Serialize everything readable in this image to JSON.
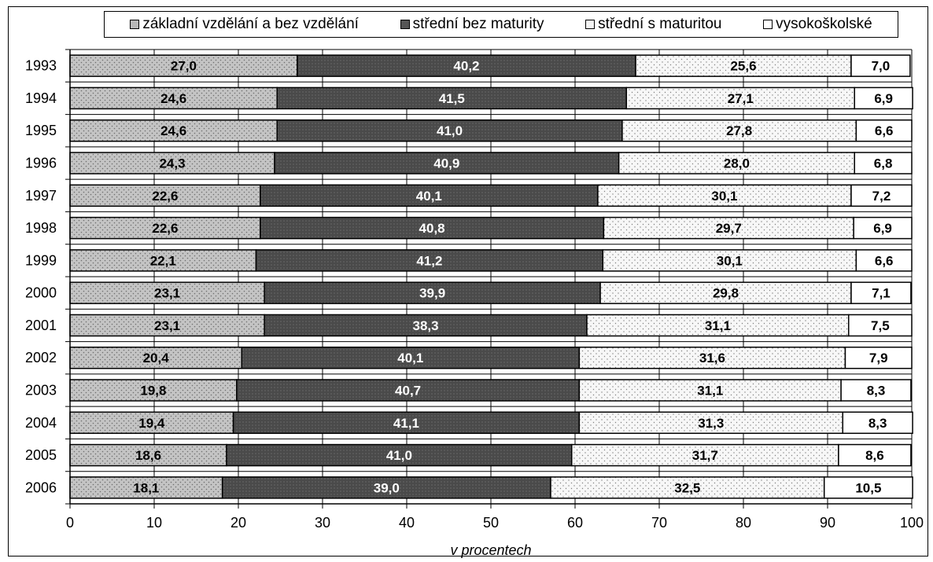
{
  "chart_data": {
    "type": "bar",
    "orientation": "horizontal",
    "stacked": true,
    "categories": [
      "1993",
      "1994",
      "1995",
      "1996",
      "1997",
      "1998",
      "1999",
      "2000",
      "2001",
      "2002",
      "2003",
      "2004",
      "2005",
      "2006"
    ],
    "series": [
      {
        "name": "základní vzdělání a bez vzdělání",
        "color": "#b8b8b8",
        "values": [
          27.0,
          24.6,
          24.6,
          24.3,
          22.6,
          22.6,
          22.1,
          23.1,
          23.1,
          20.4,
          19.8,
          19.4,
          18.6,
          18.1
        ],
        "labels": [
          "27,0",
          "24,6",
          "24,6",
          "24,3",
          "22,6",
          "22,6",
          "22,1",
          "23,1",
          "23,1",
          "20,4",
          "19,8",
          "19,4",
          "18,6",
          "18,1"
        ]
      },
      {
        "name": "střední bez maturity",
        "color": "#555555",
        "values": [
          40.2,
          41.5,
          41.0,
          40.9,
          40.1,
          40.8,
          41.2,
          39.9,
          38.3,
          40.1,
          40.7,
          41.1,
          41.0,
          39.0
        ],
        "labels": [
          "40,2",
          "41,5",
          "41,0",
          "40,9",
          "40,1",
          "40,8",
          "41,2",
          "39,9",
          "38,3",
          "40,1",
          "40,7",
          "41,1",
          "41,0",
          "39,0"
        ]
      },
      {
        "name": "střední s maturitou",
        "color": "#f4f4f4",
        "values": [
          25.6,
          27.1,
          27.8,
          28.0,
          30.1,
          29.7,
          30.1,
          29.8,
          31.1,
          31.6,
          31.1,
          31.3,
          31.7,
          32.5
        ],
        "labels": [
          "25,6",
          "27,1",
          "27,8",
          "28,0",
          "30,1",
          "29,7",
          "30,1",
          "29,8",
          "31,1",
          "31,6",
          "31,1",
          "31,3",
          "31,7",
          "32,5"
        ]
      },
      {
        "name": "vysokoškolské",
        "color": "#ffffff",
        "values": [
          7.0,
          6.9,
          6.6,
          6.8,
          7.2,
          6.9,
          6.6,
          7.1,
          7.5,
          7.9,
          8.3,
          8.3,
          8.6,
          10.5
        ],
        "labels": [
          "7,0",
          "6,9",
          "6,6",
          "6,8",
          "7,2",
          "6,9",
          "6,6",
          "7,1",
          "7,5",
          "7,9",
          "8,3",
          "8,3",
          "8,6",
          "10,5"
        ]
      }
    ],
    "xlabel": "v procentech",
    "xlim": [
      0,
      100
    ],
    "xticks": [
      "0",
      "10",
      "20",
      "30",
      "40",
      "50",
      "60",
      "70",
      "80",
      "90",
      "100"
    ],
    "grid": true,
    "legend_position": "top"
  }
}
